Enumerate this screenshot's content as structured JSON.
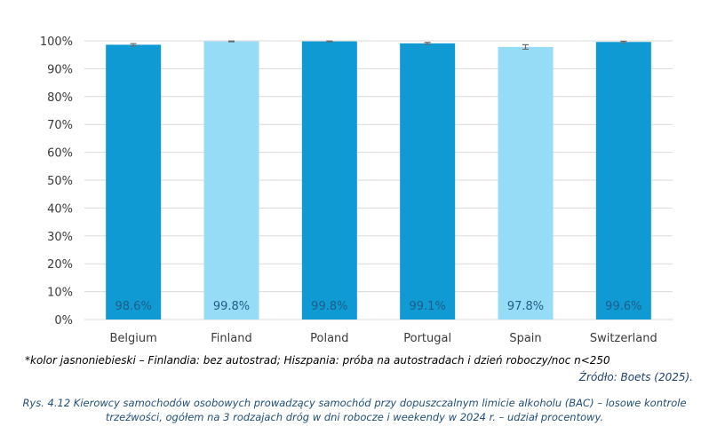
{
  "chart_data": {
    "type": "bar",
    "categories": [
      "Belgium",
      "Finland",
      "Poland",
      "Portugal",
      "Spain",
      "Switzerland"
    ],
    "values": [
      98.6,
      99.8,
      99.8,
      99.1,
      97.8,
      99.6
    ],
    "value_labels": [
      "98.6%",
      "99.8%",
      "99.8%",
      "99.1%",
      "97.8%",
      "99.6%"
    ],
    "error_bars": [
      0.4,
      0.15,
      0.15,
      0.35,
      0.8,
      0.25
    ],
    "highlighted": [
      false,
      true,
      false,
      false,
      true,
      false
    ],
    "ylim": [
      0,
      100
    ],
    "yticks": [
      0,
      10,
      20,
      30,
      40,
      50,
      60,
      70,
      80,
      90,
      100
    ],
    "ytick_labels": [
      "0%",
      "10%",
      "20%",
      "30%",
      "40%",
      "50%",
      "60%",
      "70%",
      "80%",
      "90%",
      "100%"
    ],
    "title": "",
    "xlabel": "",
    "ylabel": "",
    "grid": true,
    "legend": "none",
    "colors": {
      "bar": "#0f9ad4",
      "bar_highlight": "#97dcf6",
      "grid": "#d9d9d9",
      "error_bar": "#6b6b6b"
    }
  },
  "footnote": "*kolor jasnoniebieski – Finlandia: bez autostrad; Hiszpania: próba na autostradach i dzień roboczy/noc n<250",
  "source": "Źródło: Boets (2025).",
  "caption": "Rys. 4.12 Kierowcy samochodów osobowych prowadzący samochód przy dopuszczalnym limicie alkoholu (BAC) – losowe kontrole trzeźwości, ogółem na 3 rodzajach dróg w dni robocze i weekendy w 2024 r. – udział procentowy."
}
